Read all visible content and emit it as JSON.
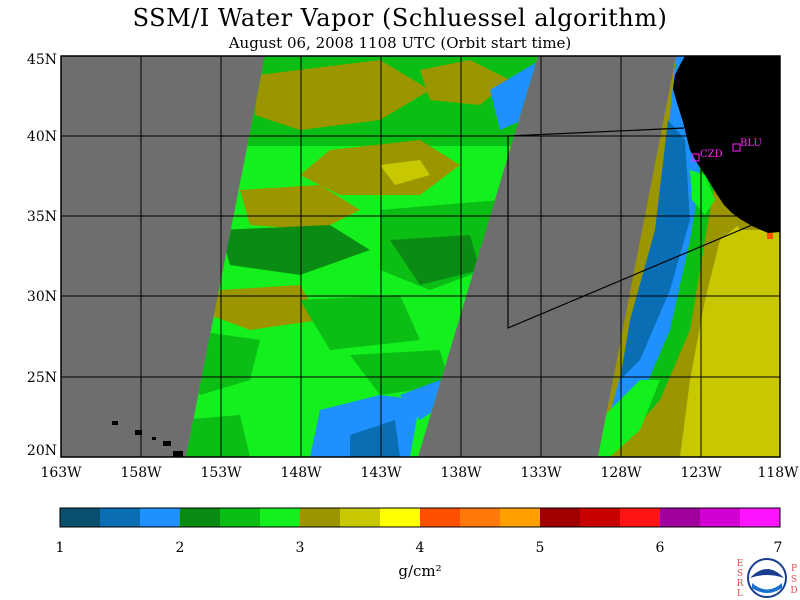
{
  "header": {
    "title": "SSM/I Water Vapor (Schluessel algorithm)",
    "subtitle": "August 06, 2008  1108 UTC  (Orbit start time)"
  },
  "map": {
    "lon_range": [
      -163,
      -118
    ],
    "lat_range": [
      20,
      45
    ],
    "lat_labels": [
      "45N",
      "40N",
      "35N",
      "30N",
      "25N",
      "20N"
    ],
    "lon_labels": [
      "163W",
      "158W",
      "153W",
      "148W",
      "143W",
      "138W",
      "133W",
      "128W",
      "123W",
      "118W"
    ],
    "colors": {
      "nodata": "#6e6e6e",
      "land": "#000000",
      "grid": "#000000",
      "station": "#ff22ff"
    },
    "stations": [
      {
        "label": "CZD",
        "lon": -123.2,
        "lat": 38.6
      },
      {
        "label": "BLU",
        "lon": -120.7,
        "lat": 39.3
      }
    ]
  },
  "colorbar": {
    "colors": [
      "#08506e",
      "#0a6eb4",
      "#1e90ff",
      "#0a8c14",
      "#0abe14",
      "#14f01e",
      "#9b9600",
      "#c8c800",
      "#ffff00",
      "#ff5000",
      "#ff780a",
      "#ffa000",
      "#a00000",
      "#c80000",
      "#ff1414",
      "#a0009b",
      "#d200d2",
      "#ff14ff"
    ],
    "ticks": [
      "1",
      "2",
      "3",
      "4",
      "5",
      "6",
      "7"
    ],
    "unit": "g/cm²"
  },
  "logo": {
    "left_letters": [
      "E",
      "S",
      "R",
      "L"
    ],
    "right_letters": [
      "P",
      "S",
      "D"
    ],
    "seal": "NOAA"
  }
}
